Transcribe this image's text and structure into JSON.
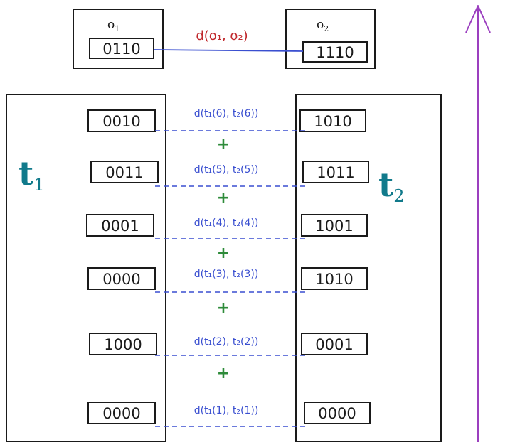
{
  "objects": {
    "o1": {
      "label": "o",
      "sub": "1",
      "code": "0110"
    },
    "o2": {
      "label": "o",
      "sub": "2",
      "code": "1110"
    },
    "distance": "d(o₁, o₂)"
  },
  "trajectories": {
    "t1": {
      "label": "t",
      "sub": "1"
    },
    "t2": {
      "label": "t",
      "sub": "2"
    }
  },
  "rows": [
    {
      "t1": "0010",
      "t2": "1010",
      "dist": "d(t₁(6), t₂(6))"
    },
    {
      "t1": "0011",
      "t2": "1011",
      "dist": "d(t₁(5), t₂(5))"
    },
    {
      "t1": "0001",
      "t2": "1001",
      "dist": "d(t₁(4), t₂(4))"
    },
    {
      "t1": "0000",
      "t2": "1010",
      "dist": "d(t₁(3), t₂(3))"
    },
    {
      "t1": "1000",
      "t2": "0001",
      "dist": "d(t₁(2), t₂(2))"
    },
    {
      "t1": "0000",
      "t2": "0000",
      "dist": "d(t₁(1), t₂(1))"
    }
  ],
  "plus_sign": "+",
  "colors": {
    "ink": "#1a1a1a",
    "distance_blue": "#3a4fd0",
    "distance_red": "#c0282c",
    "plus_green": "#2e8b3a",
    "trajectory_teal": "#117a8b",
    "axis_purple": "#9b3fbf"
  }
}
